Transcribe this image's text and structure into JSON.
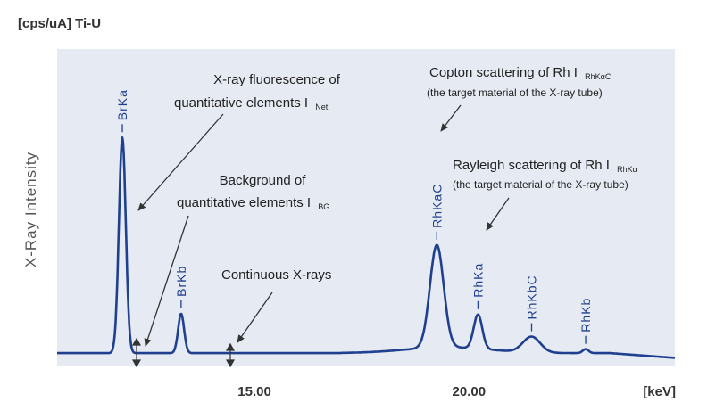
{
  "chart_data": {
    "type": "line",
    "title": "",
    "unit_label": "[cps/uA] Ti-U",
    "ylabel": "X-Ray Intensity",
    "xlabel": "[keV]",
    "xlim": [
      10.4,
      24.8
    ],
    "ylim": [
      0,
      100
    ],
    "x_ticks": [
      {
        "value": 15.0,
        "label": "15.00"
      },
      {
        "value": 20.0,
        "label": "20.00"
      }
    ],
    "baseline": 3,
    "peaks": [
      {
        "name": "BrKa",
        "x": 11.92,
        "y": 82,
        "width": 0.08
      },
      {
        "name": "BrKb",
        "x": 13.29,
        "y": 15,
        "width": 0.07
      },
      {
        "name": "RhKaC",
        "x": 19.25,
        "y": 39,
        "width": 0.16
      },
      {
        "name": "RhKa",
        "x": 20.21,
        "y": 13,
        "width": 0.1
      },
      {
        "name": "RhKbC",
        "x": 21.46,
        "y": 6,
        "width": 0.2
      },
      {
        "name": "RhKb",
        "x": 22.72,
        "y": 1.5,
        "width": 0.07
      }
    ],
    "annotations": {
      "net": {
        "line1": "X-ray fluorescence of",
        "line2": "quantitative elements I",
        "sub": "Net"
      },
      "bg": {
        "line1": "Background of",
        "line2": "quantitative elements I",
        "sub": "BG"
      },
      "continuous": {
        "text": "Continuous X-rays"
      },
      "compton": {
        "line1": "Copton scattering of Rh I",
        "sub": "RhKαC",
        "line2": "(the target material of the X-ray tube)"
      },
      "rayleigh": {
        "line1": "Rayleigh scattering of Rh I",
        "sub": "RhKα",
        "line2": "(the target material of the X-ray tube)"
      }
    },
    "colors": {
      "background": "#e6eaf3",
      "line": "#1f3f8f",
      "text": "#222222"
    }
  }
}
